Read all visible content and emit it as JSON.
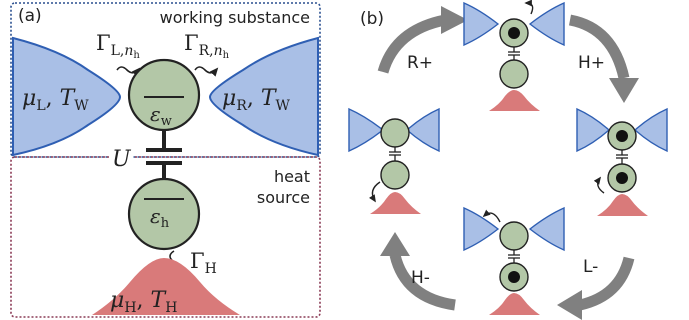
{
  "panel_a": {
    "label": "(a)",
    "working_region_label": "working substance",
    "heat_region_label_1": "heat",
    "heat_region_label_2": "source",
    "left_reservoir": {
      "mu": "μ",
      "mu_sub": "L",
      "T": "T",
      "T_sub": "W"
    },
    "right_reservoir": {
      "mu": "μ",
      "mu_sub": "R",
      "T": "T",
      "T_sub": "W"
    },
    "heat_reservoir": {
      "mu": "μ",
      "mu_sub": "H",
      "T": "T",
      "T_sub": "H"
    },
    "gamma_left": {
      "sym": "Γ",
      "sub": "L,",
      "sub_n": "n",
      "sub_h": "h"
    },
    "gamma_right": {
      "sym": "Γ",
      "sub": "R,",
      "sub_n": "n",
      "sub_h": "h"
    },
    "gamma_heat": {
      "sym": "Γ",
      "sub": "H"
    },
    "epsilon_w": {
      "sym": "ε",
      "sub": "w"
    },
    "epsilon_h": {
      "sym": "ε",
      "sub": "h"
    },
    "coupling": "U"
  },
  "panel_b": {
    "label": "(b)",
    "steps": {
      "r_plus": "R+",
      "h_plus": "H+",
      "l_minus": "L-",
      "h_minus": "H-"
    }
  },
  "colors": {
    "lead_blue": "#a9bfe6",
    "lead_edge": "#2f5fb3",
    "heat_red": "#d97a7a",
    "dot_green": "#b3c7a7",
    "frame_blue": "#2a4f8f",
    "frame_red": "#8a3a55",
    "arrow_gray": "#808080"
  }
}
